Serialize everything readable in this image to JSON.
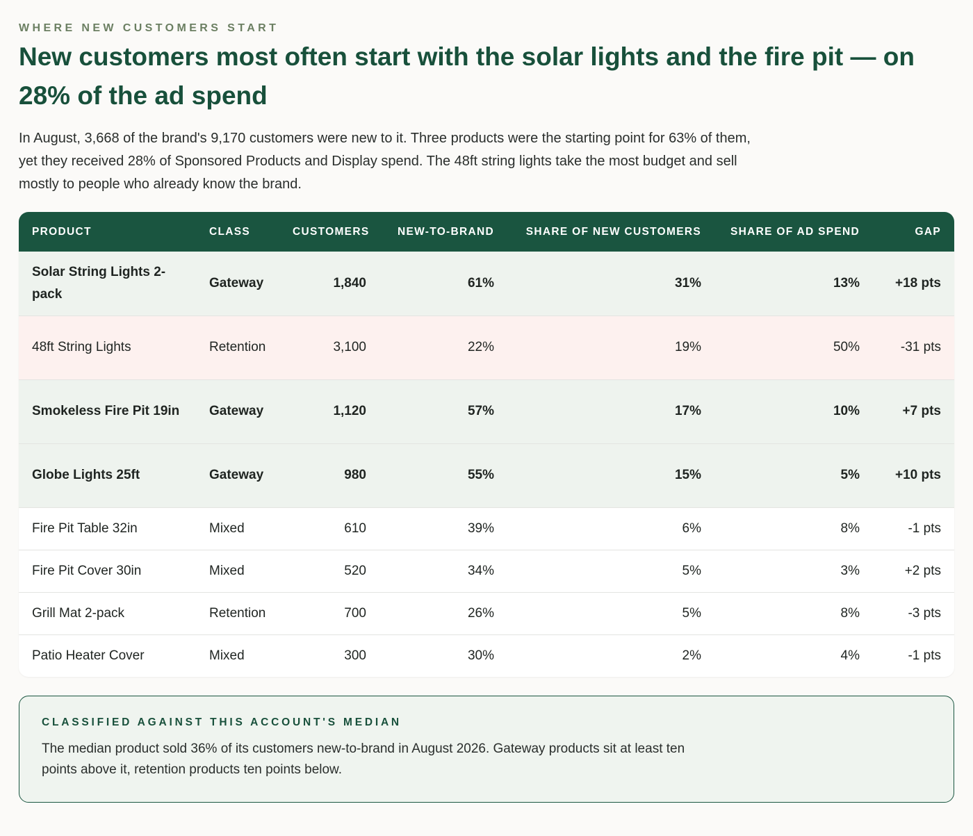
{
  "header": {
    "eyebrow": "WHERE NEW CUSTOMERS START",
    "title": "New customers most often start with the solar lights and the fire pit — on 28% of the ad spend",
    "lede": "In August, 3,668 of the brand's 9,170 customers were new to it. Three products were the starting point for 63% of them, yet they received 28% of Sponsored Products and Display spend. The 48ft string lights take the most budget and sell mostly to people who already know the brand."
  },
  "table": {
    "columns": [
      "PRODUCT",
      "CLASS",
      "CUSTOMERS",
      "NEW-TO-BRAND",
      "SHARE OF NEW CUSTOMERS",
      "SHARE OF AD SPEND",
      "GAP"
    ],
    "rows": [
      {
        "product": "Solar String Lights 2-pack",
        "class": "Gateway",
        "customers": "1,840",
        "ntb": "61%",
        "share_new": "31%",
        "share_spend": "13%",
        "gap": "+18 pts"
      },
      {
        "product": "48ft String Lights",
        "class": "Retention",
        "customers": "3,100",
        "ntb": "22%",
        "share_new": "19%",
        "share_spend": "50%",
        "gap": "-31 pts"
      },
      {
        "product": "Smokeless Fire Pit 19in",
        "class": "Gateway",
        "customers": "1,120",
        "ntb": "57%",
        "share_new": "17%",
        "share_spend": "10%",
        "gap": "+7 pts"
      },
      {
        "product": "Globe Lights 25ft",
        "class": "Gateway",
        "customers": "980",
        "ntb": "55%",
        "share_new": "15%",
        "share_spend": "5%",
        "gap": "+10 pts"
      },
      {
        "product": "Fire Pit Table 32in",
        "class": "Mixed",
        "customers": "610",
        "ntb": "39%",
        "share_new": "6%",
        "share_spend": "8%",
        "gap": "-1 pts"
      },
      {
        "product": "Fire Pit Cover 30in",
        "class": "Mixed",
        "customers": "520",
        "ntb": "34%",
        "share_new": "5%",
        "share_spend": "3%",
        "gap": "+2 pts"
      },
      {
        "product": "Grill Mat 2-pack",
        "class": "Retention",
        "customers": "700",
        "ntb": "26%",
        "share_new": "5%",
        "share_spend": "8%",
        "gap": "-3 pts"
      },
      {
        "product": "Patio Heater Cover",
        "class": "Mixed",
        "customers": "300",
        "ntb": "30%",
        "share_new": "2%",
        "share_spend": "4%",
        "gap": "-1 pts"
      }
    ]
  },
  "note": {
    "label": "CLASSIFIED AGAINST THIS ACCOUNT'S MEDIAN",
    "body": "The median product sold 36% of its customers new-to-brand in August 2026. Gateway products sit at least ten points above it, retention products ten points below."
  },
  "colors": {
    "accent": "#1a5540",
    "gateway_row": "#eef3ee",
    "retention_highlight_row": "#fdf1ef"
  }
}
